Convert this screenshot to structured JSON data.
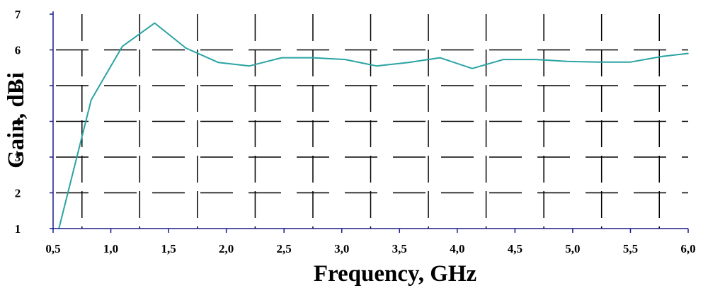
{
  "colors": {
    "series": "#2aa3a3",
    "axis": "#1a1a8c",
    "grid": "#000000"
  },
  "chart_data": {
    "type": "line",
    "xlabel": "Frequency, GHz",
    "ylabel": "Gain, dBi",
    "xlim": [
      0.5,
      6.0
    ],
    "ylim": [
      1,
      7
    ],
    "grid": "dashed",
    "xticks": [
      0.5,
      1.0,
      1.5,
      2.0,
      2.5,
      3.0,
      3.5,
      4.0,
      4.5,
      5.0,
      5.5,
      6.0
    ],
    "xtick_labels": [
      "0,5",
      "1,0",
      "1,5",
      "2,0",
      "2,5",
      "3,0",
      "3,5",
      "4,0",
      "4,5",
      "5,0",
      "5,5",
      "6,0"
    ],
    "yticks": [
      1,
      2,
      3,
      4,
      5,
      6,
      7
    ],
    "ytick_labels": [
      "1",
      "2",
      "3",
      "4",
      "5",
      "6",
      "7"
    ],
    "series": [
      {
        "x": [
          0.55,
          0.83,
          1.1,
          1.38,
          1.65,
          1.93,
          2.2,
          2.48,
          2.75,
          3.03,
          3.3,
          3.58,
          3.85,
          4.13,
          4.4,
          4.68,
          4.95,
          5.23,
          5.5,
          5.78,
          6.0
        ],
        "y": [
          1.0,
          4.6,
          6.1,
          6.75,
          6.05,
          5.65,
          5.55,
          5.78,
          5.78,
          5.73,
          5.55,
          5.65,
          5.78,
          5.48,
          5.73,
          5.73,
          5.68,
          5.66,
          5.66,
          5.82,
          5.9
        ]
      }
    ]
  }
}
